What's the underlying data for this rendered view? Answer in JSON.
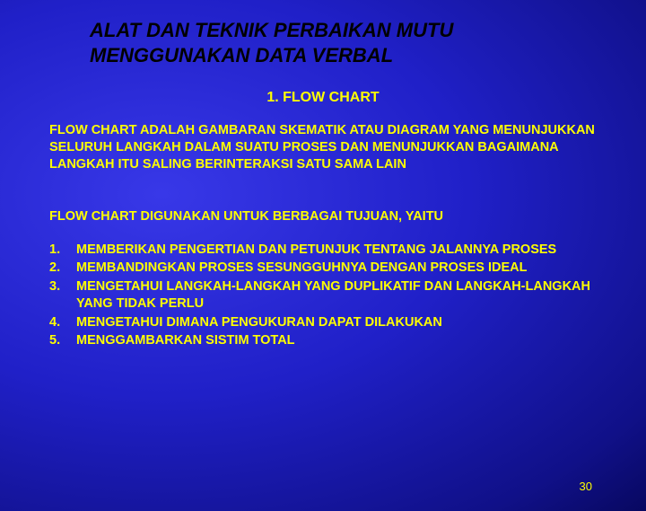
{
  "slide": {
    "title_line1": "ALAT DAN TEKNIK PERBAIKAN MUTU",
    "title_line2": "MENGGUNAKAN DATA VERBAL",
    "subtitle": "1.  FLOW CHART",
    "definition": "FLOW CHART ADALAH GAMBARAN SKEMATIK ATAU DIAGRAM YANG MENUNJUKKAN SELURUH LANGKAH DALAM SUATU PROSES DAN MENUNJUKKAN BAGAIMANA LANGKAH ITU SALING BERINTERAKSI SATU SAMA LAIN",
    "purpose_heading": "FLOW CHART DIGUNAKAN UNTUK BERBAGAI TUJUAN, YAITU",
    "purposes": [
      {
        "num": "1.",
        "text": "MEMBERIKAN PENGERTIAN DAN PETUNJUK TENTANG JALANNYA PROSES"
      },
      {
        "num": "2.",
        "text": "MEMBANDINGKAN PROSES SESUNGGUHNYA DENGAN PROSES IDEAL"
      },
      {
        "num": "3.",
        "text": "MENGETAHUI LANGKAH-LANGKAH YANG DUPLIKATIF DAN LANGKAH-LANGKAH YANG TIDAK PERLU"
      },
      {
        "num": "4.",
        "text": "MENGETAHUI DIMANA PENGUKURAN DAPAT DILAKUKAN"
      },
      {
        "num": "5.",
        "text": "MENGGAMBARKAN SISTIM TOTAL"
      }
    ],
    "page_number": "30"
  },
  "colors": {
    "background_center": "#3838e8",
    "background_edge": "#080860",
    "title_color": "#000000",
    "text_color": "#ffff00"
  }
}
